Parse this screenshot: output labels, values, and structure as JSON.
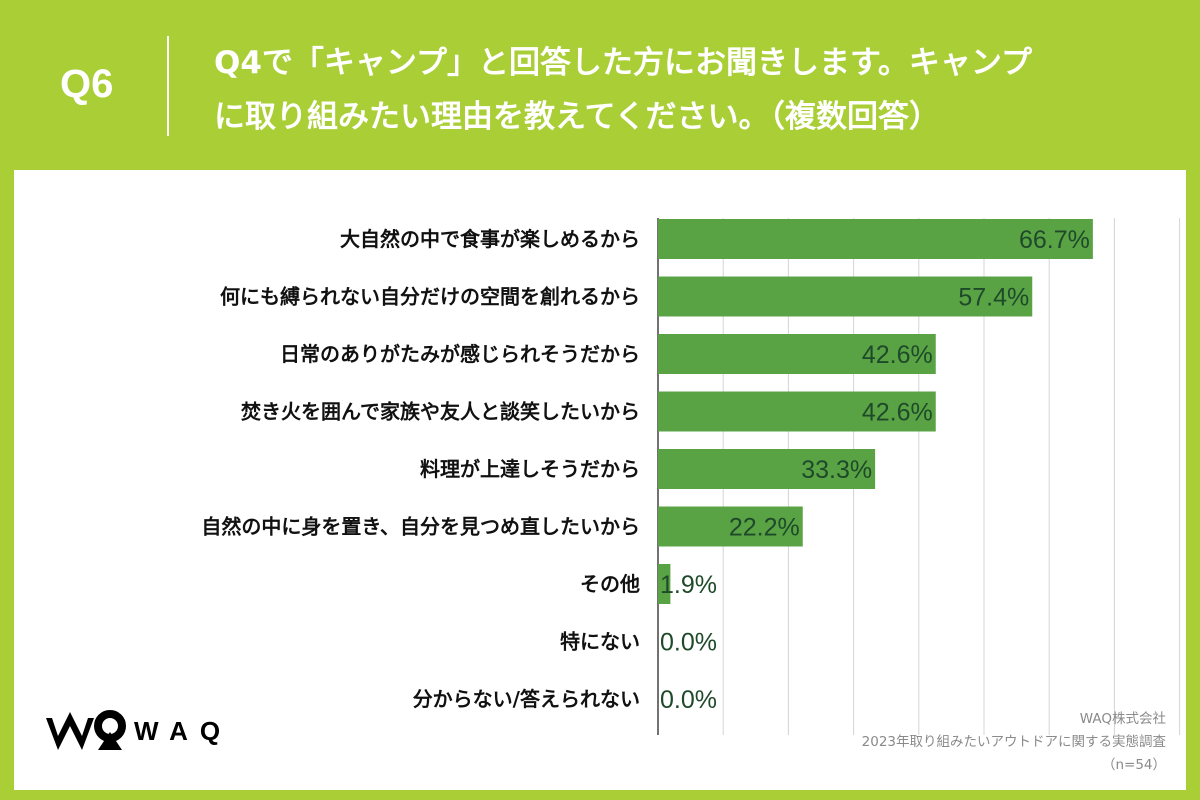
{
  "header": {
    "question_no": "Q6",
    "question_line1": "Q4で「キャンプ」と回答した方にお聞きします。キャンプ",
    "question_line2": "に取り組みたい理由を教えてください。（複数回答）"
  },
  "chart_data": {
    "type": "bar",
    "orientation": "horizontal",
    "categories": [
      "大自然の中で食事が楽しめるから",
      "何にも縛られない自分だけの空間を創れるから",
      "日常のありがたみが感じられそうだから",
      "焚き火を囲んで家族や友人と談笑したいから",
      "料理が上達しそうだから",
      "自然の中に身を置き、自分を見つめ直したいから",
      "その他",
      "特にない",
      "分からない/答えられない"
    ],
    "values": [
      66.7,
      57.4,
      42.6,
      42.6,
      33.3,
      22.2,
      1.9,
      0.0,
      0.0
    ],
    "value_labels": [
      "66.7%",
      "57.4%",
      "42.6%",
      "42.6%",
      "33.3%",
      "22.2%",
      "1.9%",
      "0.0%",
      "0.0%"
    ],
    "xlim": [
      0,
      80
    ],
    "grid": true,
    "bar_color": "#5aa345"
  },
  "logo": {
    "text": "WAQ"
  },
  "source": {
    "company": "WAQ株式会社",
    "survey": "2023年取り組みたいアウトドアに関する実態調査",
    "sample": "（n=54）"
  }
}
